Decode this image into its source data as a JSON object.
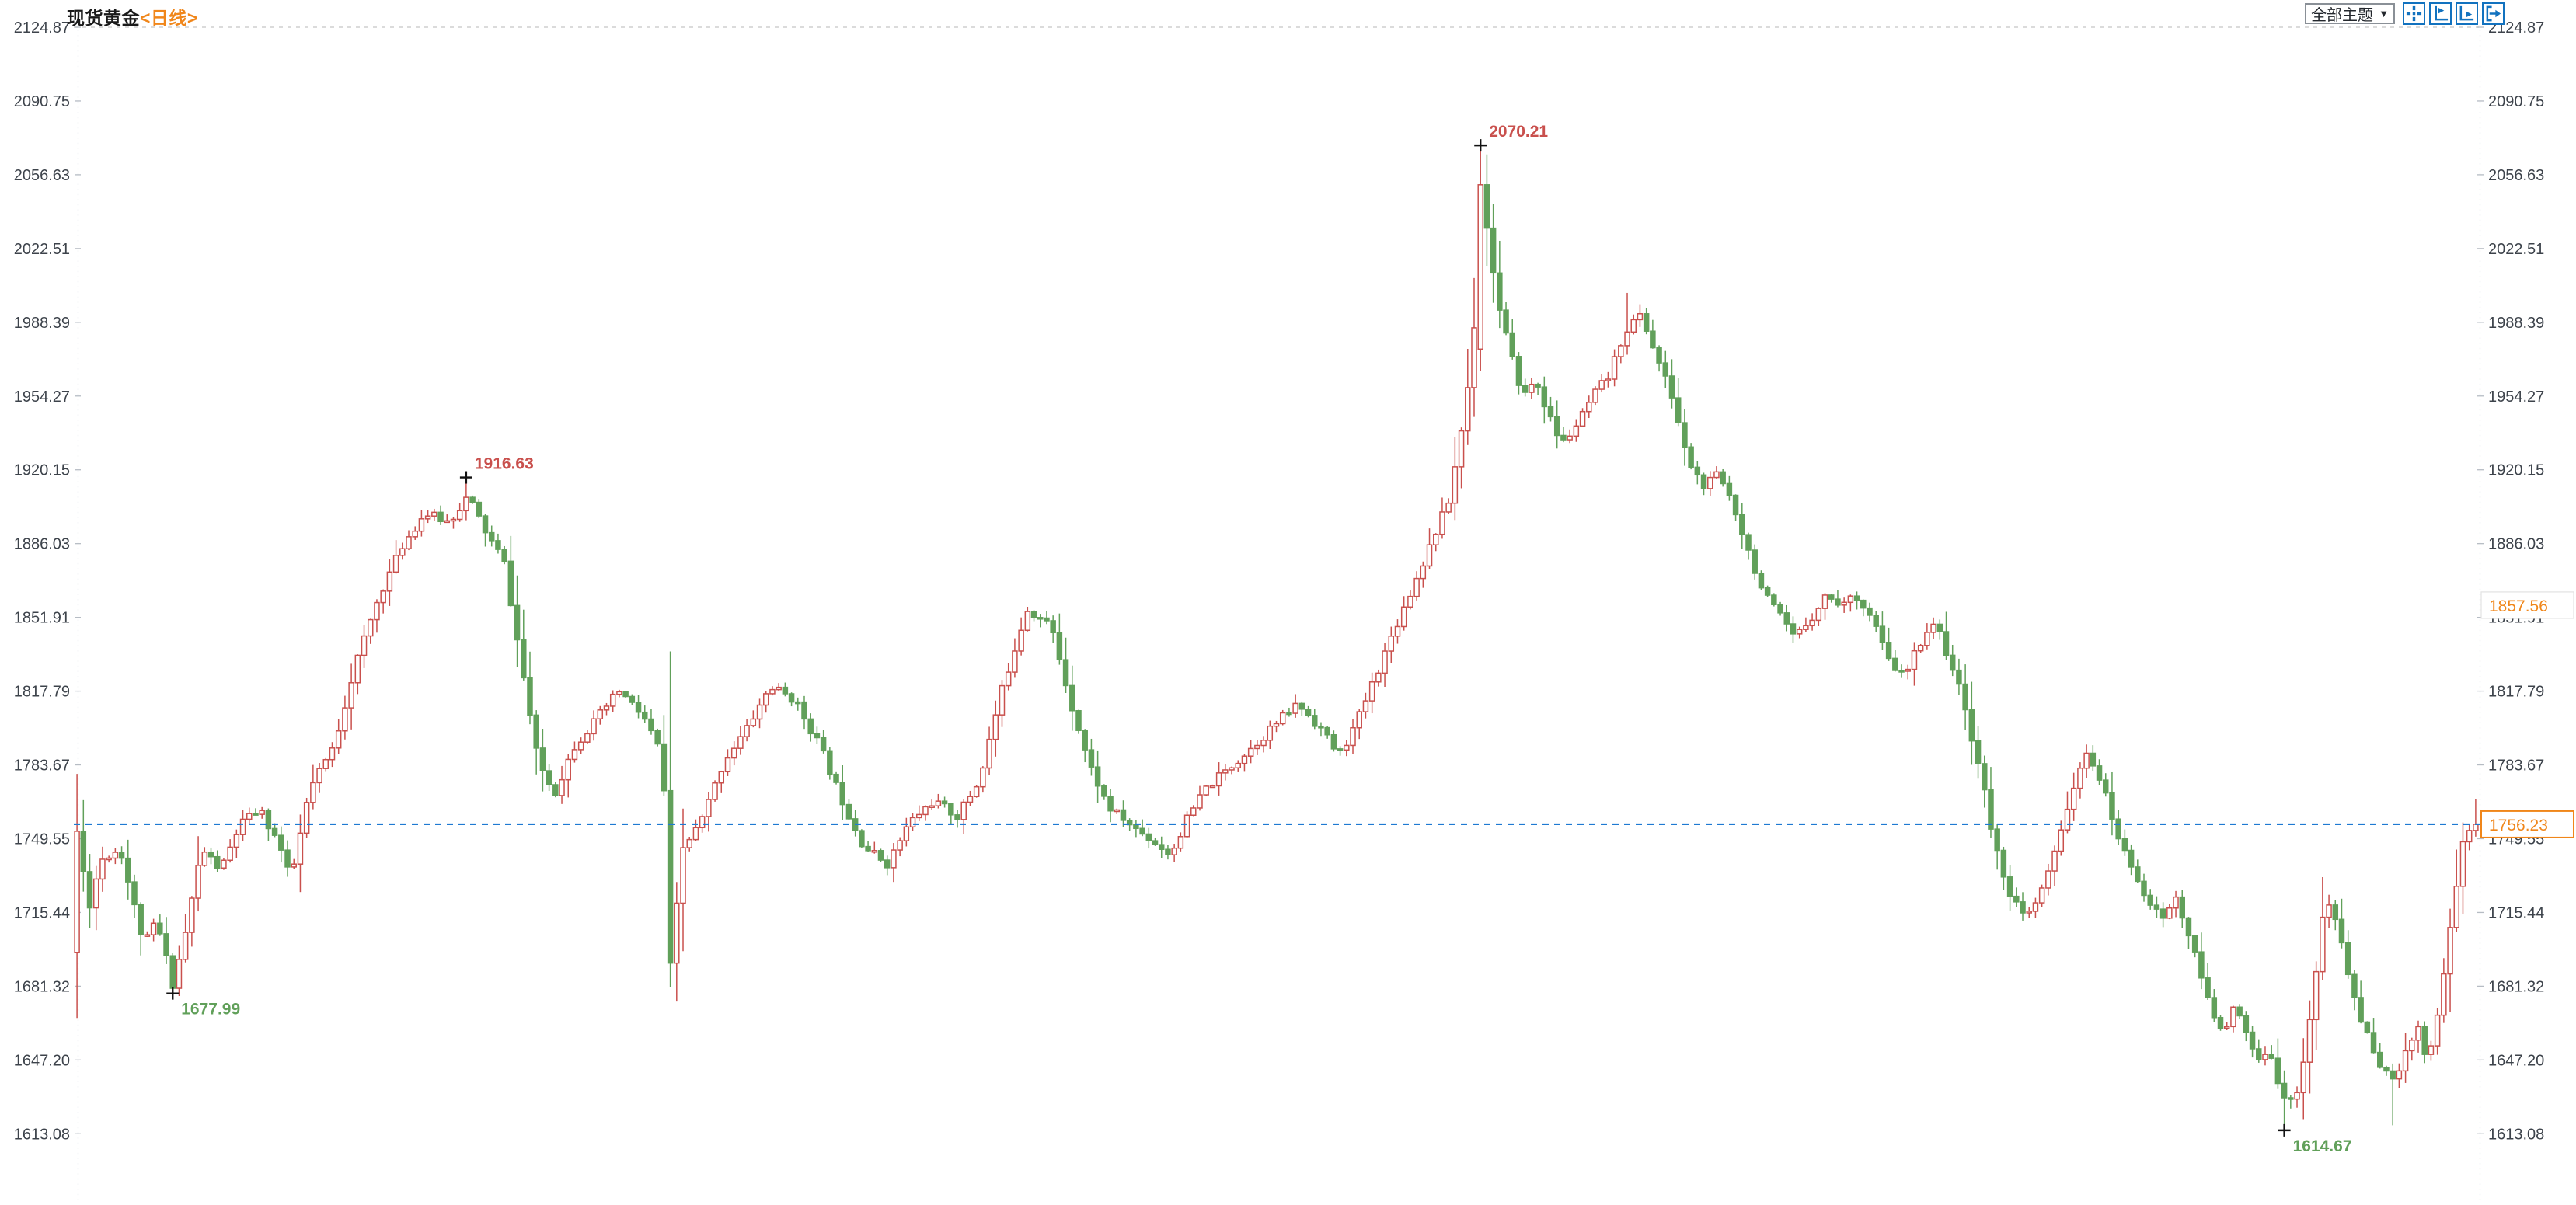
{
  "header": {
    "title": "现货黄金",
    "period": "<日线>"
  },
  "toolbar": {
    "themes_label": "全部主题",
    "dropdown_arrow": "▼",
    "icons": [
      "pan-tool-icon",
      "y-axis-scale-icon",
      "x-axis-scale-icon",
      "scroll-to-latest-icon"
    ]
  },
  "chart_data": {
    "type": "candlestick",
    "instrument": "现货黄金",
    "timeframe": "日线",
    "candle_count": 377,
    "y_axis": {
      "max": 2124.87,
      "min": 1613.08,
      "tick_labels": [
        "2124.87",
        "2090.75",
        "2056.63",
        "2022.51",
        "1988.39",
        "1954.27",
        "1920.15",
        "1886.03",
        "1851.91",
        "1817.79",
        "1783.67",
        "1749.55",
        "1715.44",
        "1681.32",
        "1647.20",
        "1613.08"
      ]
    },
    "last_price": 1756.23,
    "last_price_label": "1756.23",
    "reference_price": 1857.56,
    "reference_price_label": "1857.56",
    "annotations": [
      {
        "t": 0.04,
        "kind": "low",
        "label": "1677.99",
        "value": 1677.99
      },
      {
        "t": 0.163,
        "kind": "high",
        "label": "1916.63",
        "value": 1916.63
      },
      {
        "t": 0.585,
        "kind": "high",
        "label": "2070.21",
        "value": 2070.21
      },
      {
        "t": 0.919,
        "kind": "low",
        "label": "1614.67",
        "value": 1614.67
      }
    ],
    "key_candles": [
      {
        "t": 0.0,
        "open": 1697,
        "close": 1753
      },
      {
        "t": 0.04,
        "low": 1677.99
      },
      {
        "t": 0.163,
        "high": 1916.63
      },
      {
        "t": 0.248,
        "close": 1692,
        "low": 1681
      },
      {
        "t": 0.585,
        "open": 1976,
        "close": 2052,
        "high": 2070.21,
        "low": 1966
      },
      {
        "t": 0.645,
        "high": 2002
      },
      {
        "t": 0.919,
        "low": 1614.67
      },
      {
        "t": 0.966,
        "low": 1617
      },
      {
        "t": 1.0,
        "close": 1756.23,
        "high": 1768
      }
    ],
    "path_anchors": [
      [
        0.0,
        1752
      ],
      [
        0.005,
        1718
      ],
      [
        0.01,
        1740
      ],
      [
        0.018,
        1745
      ],
      [
        0.023,
        1722
      ],
      [
        0.028,
        1700
      ],
      [
        0.033,
        1712
      ],
      [
        0.04,
        1682
      ],
      [
        0.045,
        1705
      ],
      [
        0.052,
        1745
      ],
      [
        0.06,
        1735
      ],
      [
        0.068,
        1756
      ],
      [
        0.076,
        1763
      ],
      [
        0.084,
        1748
      ],
      [
        0.089,
        1730
      ],
      [
        0.097,
        1772
      ],
      [
        0.107,
        1792
      ],
      [
        0.116,
        1830
      ],
      [
        0.126,
        1862
      ],
      [
        0.136,
        1886
      ],
      [
        0.145,
        1900
      ],
      [
        0.155,
        1896
      ],
      [
        0.163,
        1908
      ],
      [
        0.171,
        1890
      ],
      [
        0.178,
        1878
      ],
      [
        0.184,
        1838
      ],
      [
        0.192,
        1786
      ],
      [
        0.199,
        1770
      ],
      [
        0.207,
        1792
      ],
      [
        0.216,
        1804
      ],
      [
        0.226,
        1818
      ],
      [
        0.236,
        1806
      ],
      [
        0.244,
        1788
      ],
      [
        0.248,
        1692
      ],
      [
        0.252,
        1744
      ],
      [
        0.26,
        1757
      ],
      [
        0.27,
        1786
      ],
      [
        0.279,
        1800
      ],
      [
        0.289,
        1820
      ],
      [
        0.299,
        1814
      ],
      [
        0.309,
        1794
      ],
      [
        0.318,
        1770
      ],
      [
        0.328,
        1746
      ],
      [
        0.338,
        1738
      ],
      [
        0.347,
        1757
      ],
      [
        0.357,
        1767
      ],
      [
        0.367,
        1760
      ],
      [
        0.376,
        1776
      ],
      [
        0.386,
        1820
      ],
      [
        0.396,
        1856
      ],
      [
        0.406,
        1848
      ],
      [
        0.414,
        1814
      ],
      [
        0.422,
        1784
      ],
      [
        0.43,
        1764
      ],
      [
        0.439,
        1756
      ],
      [
        0.449,
        1748
      ],
      [
        0.456,
        1742
      ],
      [
        0.462,
        1757
      ],
      [
        0.47,
        1772
      ],
      [
        0.48,
        1782
      ],
      [
        0.49,
        1792
      ],
      [
        0.499,
        1802
      ],
      [
        0.509,
        1812
      ],
      [
        0.519,
        1800
      ],
      [
        0.526,
        1788
      ],
      [
        0.533,
        1802
      ],
      [
        0.541,
        1824
      ],
      [
        0.549,
        1846
      ],
      [
        0.557,
        1866
      ],
      [
        0.565,
        1888
      ],
      [
        0.572,
        1906
      ],
      [
        0.578,
        1944
      ],
      [
        0.582,
        1976
      ],
      [
        0.585,
        2052
      ],
      [
        0.588,
        2030
      ],
      [
        0.593,
        1994
      ],
      [
        0.598,
        1972
      ],
      [
        0.603,
        1954
      ],
      [
        0.608,
        1962
      ],
      [
        0.614,
        1944
      ],
      [
        0.619,
        1932
      ],
      [
        0.626,
        1942
      ],
      [
        0.632,
        1954
      ],
      [
        0.639,
        1964
      ],
      [
        0.645,
        1984
      ],
      [
        0.652,
        1992
      ],
      [
        0.658,
        1974
      ],
      [
        0.665,
        1954
      ],
      [
        0.671,
        1926
      ],
      [
        0.678,
        1912
      ],
      [
        0.684,
        1918
      ],
      [
        0.69,
        1906
      ],
      [
        0.697,
        1882
      ],
      [
        0.703,
        1863
      ],
      [
        0.71,
        1852
      ],
      [
        0.716,
        1842
      ],
      [
        0.723,
        1852
      ],
      [
        0.729,
        1862
      ],
      [
        0.736,
        1858
      ],
      [
        0.742,
        1862
      ],
      [
        0.749,
        1850
      ],
      [
        0.755,
        1832
      ],
      [
        0.762,
        1824
      ],
      [
        0.768,
        1840
      ],
      [
        0.774,
        1850
      ],
      [
        0.781,
        1832
      ],
      [
        0.787,
        1810
      ],
      [
        0.794,
        1778
      ],
      [
        0.799,
        1748
      ],
      [
        0.806,
        1724
      ],
      [
        0.812,
        1712
      ],
      [
        0.818,
        1722
      ],
      [
        0.825,
        1744
      ],
      [
        0.831,
        1770
      ],
      [
        0.838,
        1788
      ],
      [
        0.842,
        1782
      ],
      [
        0.847,
        1764
      ],
      [
        0.853,
        1744
      ],
      [
        0.858,
        1734
      ],
      [
        0.863,
        1722
      ],
      [
        0.869,
        1712
      ],
      [
        0.875,
        1722
      ],
      [
        0.88,
        1706
      ],
      [
        0.885,
        1688
      ],
      [
        0.89,
        1668
      ],
      [
        0.895,
        1662
      ],
      [
        0.9,
        1672
      ],
      [
        0.905,
        1656
      ],
      [
        0.91,
        1646
      ],
      [
        0.915,
        1650
      ],
      [
        0.919,
        1632
      ],
      [
        0.924,
        1626
      ],
      [
        0.928,
        1646
      ],
      [
        0.933,
        1682
      ],
      [
        0.937,
        1722
      ],
      [
        0.943,
        1708
      ],
      [
        0.947,
        1686
      ],
      [
        0.952,
        1666
      ],
      [
        0.957,
        1652
      ],
      [
        0.962,
        1642
      ],
      [
        0.966,
        1636
      ],
      [
        0.971,
        1654
      ],
      [
        0.976,
        1662
      ],
      [
        0.98,
        1646
      ],
      [
        0.985,
        1674
      ],
      [
        0.99,
        1714
      ],
      [
        0.995,
        1750
      ],
      [
        1.0,
        1756.23
      ]
    ],
    "colors": {
      "up": "#c9504d",
      "down": "#61a05a",
      "last_line": "#1f7ad2",
      "accent_orange": "#f0861a",
      "marker": "#111111",
      "axis_text": "#3d434b",
      "grid": "#cfd4da",
      "icon_blue": "#1272bf"
    },
    "legend_position": "none",
    "grid": "top-line-only"
  }
}
